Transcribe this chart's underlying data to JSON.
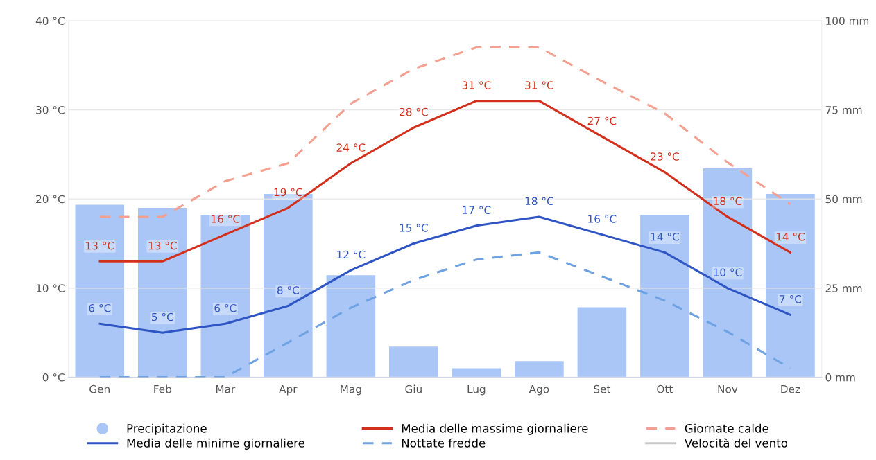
{
  "chart_data": {
    "type": "line",
    "categories": [
      "Gen",
      "Feb",
      "Mar",
      "Apr",
      "Mag",
      "Giu",
      "Lug",
      "Ago",
      "Set",
      "Ott",
      "Nov",
      "Dez"
    ],
    "ylim": [
      0,
      40
    ],
    "yticks": [
      {
        "value": 0,
        "label": "0 °C"
      },
      {
        "value": 10,
        "label": "10 °C"
      },
      {
        "value": 20,
        "label": "20 °C"
      },
      {
        "value": 30,
        "label": "30 °C"
      },
      {
        "value": 40,
        "label": "40 °C"
      }
    ],
    "y2lim": [
      0,
      100
    ],
    "y2ticks": [
      {
        "value": 0,
        "label": "0 mm"
      },
      {
        "value": 25,
        "label": "25 mm"
      },
      {
        "value": 50,
        "label": "50 mm"
      },
      {
        "value": 75,
        "label": "75 mm"
      },
      {
        "value": 100,
        "label": "100 mm"
      }
    ],
    "grid": "y",
    "legend": "bottom",
    "marker": "none",
    "series": [
      {
        "name": "Precipitazione",
        "type": "bar",
        "axis": "y2",
        "color": "#a9c6f7",
        "values": [
          48.4,
          47.5,
          45.5,
          51.4,
          28.6,
          8.6,
          2.5,
          4.5,
          19.6,
          45.5,
          58.6,
          51.4
        ]
      },
      {
        "name": "Media delle massime giornaliere",
        "color": "#d2301c",
        "line_style": "solid",
        "values": [
          13,
          13,
          16,
          19,
          24,
          28,
          31,
          31,
          27,
          23,
          18,
          14
        ],
        "value_labels": [
          "13 °C",
          "13 °C",
          "16 °C",
          "19 °C",
          "24 °C",
          "28 °C",
          "31 °C",
          "31 °C",
          "27 °C",
          "23 °C",
          "18 °C",
          "14 °C"
        ]
      },
      {
        "name": "Giornate calde",
        "color": "#f4a090",
        "line_style": "dashed",
        "values": [
          18,
          18,
          22,
          24,
          30.7,
          34.6,
          37,
          37,
          33.2,
          29.6,
          24.1,
          19.4
        ]
      },
      {
        "name": "Media delle minime giornaliere",
        "color": "#2f55c4",
        "line_style": "solid",
        "values": [
          6,
          5,
          6,
          8,
          12,
          15,
          17,
          18,
          16,
          14,
          10,
          7
        ],
        "value_labels": [
          "6 °C",
          "5 °C",
          "6 °C",
          "8 °C",
          "12 °C",
          "15 °C",
          "17 °C",
          "18 °C",
          "16 °C",
          "14 °C",
          "10 °C",
          "7 °C"
        ]
      },
      {
        "name": "Nottate fredde",
        "color": "#6fa2e0",
        "line_style": "dashed",
        "values": [
          0,
          0,
          0,
          3.9,
          7.8,
          10.9,
          13.2,
          14,
          11.3,
          8.6,
          5.1,
          1
        ]
      },
      {
        "name": "Velocità del vento",
        "color": "#c8c8c8",
        "line_style": "solid",
        "values": [
          null,
          null,
          null,
          null,
          null,
          null,
          null,
          null,
          null,
          null,
          null,
          null
        ]
      }
    ]
  }
}
